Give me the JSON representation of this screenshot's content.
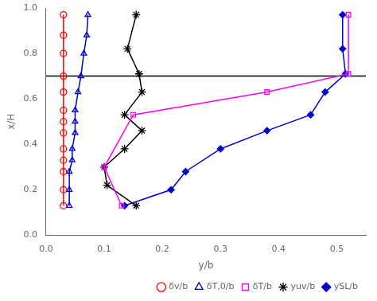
{
  "chart_data": {
    "type": "line",
    "xlabel": "y/b",
    "ylabel": "x/H",
    "xlim": [
      0,
      0.55
    ],
    "ylim": [
      0,
      1.0
    ],
    "xticks": [
      {
        "value": 0,
        "label": "0.0"
      },
      0.1,
      0.2,
      0.3,
      0.4,
      0.5
    ],
    "yticks": [
      {
        "value": 0,
        "label": "0.0"
      },
      0.2,
      0.4,
      0.6,
      0.8,
      {
        "value": 1.0,
        "label": "1.0"
      }
    ],
    "grid": false,
    "legend": "lower right",
    "hlines": [
      {
        "y": 0.7,
        "color": "#000000"
      }
    ],
    "series": [
      {
        "name": "δv/b",
        "color": "#ff0000",
        "marker": "circle-open",
        "line_style": "solid",
        "x": [
          0.03,
          0.03,
          0.03,
          0.03,
          0.03,
          0.03,
          0.03,
          0.03,
          0.03,
          0.03,
          0.03,
          0.03,
          0.03
        ],
        "values": [
          0.13,
          0.2,
          0.28,
          0.33,
          0.38,
          0.45,
          0.5,
          0.55,
          0.63,
          0.7,
          0.8,
          0.88,
          0.97
        ]
      },
      {
        "name": "δT,0/b",
        "color": "#0000cd",
        "marker": "triangle-open",
        "line_style": "solid",
        "x": [
          0.04,
          0.04,
          0.04,
          0.045,
          0.045,
          0.05,
          0.05,
          0.05,
          0.055,
          0.06,
          0.065,
          0.07,
          0.072
        ],
        "values": [
          0.13,
          0.2,
          0.28,
          0.33,
          0.38,
          0.45,
          0.5,
          0.55,
          0.63,
          0.7,
          0.8,
          0.88,
          0.97
        ]
      },
      {
        "name": "δT/b",
        "color": "#ff00ff",
        "marker": "square-open",
        "line_style": "solid",
        "x": [
          0.13,
          0.1,
          0.15,
          0.38,
          0.52,
          0.52
        ],
        "values": [
          0.13,
          0.3,
          0.53,
          0.63,
          0.71,
          0.97
        ]
      },
      {
        "name": "yuv/b",
        "color": "#000000",
        "marker": "star",
        "line_style": "solid",
        "x": [
          0.155,
          0.105,
          0.1,
          0.135,
          0.165,
          0.135,
          0.165,
          0.16,
          0.14,
          0.155
        ],
        "values": [
          0.13,
          0.22,
          0.3,
          0.38,
          0.46,
          0.53,
          0.63,
          0.71,
          0.82,
          0.97
        ]
      },
      {
        "name": "ySL/b",
        "color": "#0000cd",
        "marker": "diamond",
        "line_style": "solid",
        "x": [
          0.135,
          0.215,
          0.24,
          0.3,
          0.38,
          0.455,
          0.48,
          0.515,
          0.51,
          0.51
        ],
        "values": [
          0.13,
          0.2,
          0.28,
          0.38,
          0.46,
          0.53,
          0.63,
          0.71,
          0.82,
          0.97
        ]
      }
    ]
  }
}
